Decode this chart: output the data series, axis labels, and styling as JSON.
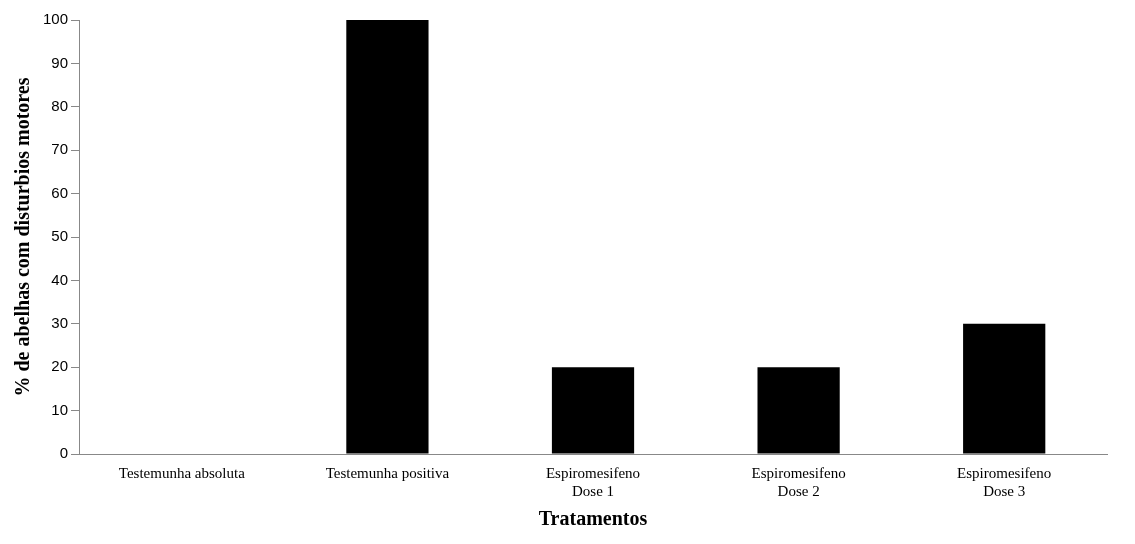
{
  "chart_data": {
    "type": "bar",
    "xlabel": "Tratamentos",
    "ylabel": "% de abelhas com disturbios motores",
    "categories": [
      "Testemunha absoluta",
      "Testemunha positiva",
      "Espiromesifeno\nDose 1",
      "Espiromesifeno\nDose 2",
      "Espiromesifeno\nDose 3"
    ],
    "values": [
      0,
      100,
      20,
      20,
      30
    ],
    "color": "#000000",
    "ylim": [
      0,
      100
    ],
    "yticks": [
      0,
      10,
      20,
      30,
      40,
      50,
      60,
      70,
      80,
      90,
      100
    ],
    "grid": false,
    "legend": false
  }
}
